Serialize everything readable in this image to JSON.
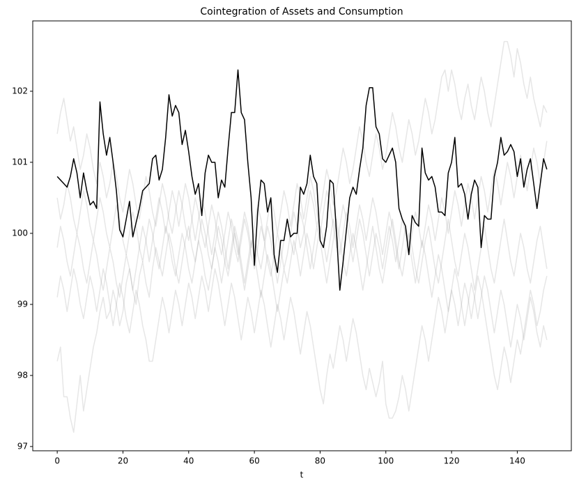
{
  "chart_data": {
    "type": "line",
    "title": "Cointegration of Assets and Consumption",
    "xlabel": "t",
    "x": [
      0,
      1,
      2,
      3,
      4,
      5,
      6,
      7,
      8,
      9,
      10,
      11,
      12,
      13,
      14,
      15,
      16,
      17,
      18,
      19,
      20,
      21,
      22,
      23,
      24,
      25,
      26,
      27,
      28,
      29,
      30,
      31,
      32,
      33,
      34,
      35,
      36,
      37,
      38,
      39,
      40,
      41,
      42,
      43,
      44,
      45,
      46,
      47,
      48,
      49,
      50,
      51,
      52,
      53,
      54,
      55,
      56,
      57,
      58,
      59,
      60,
      61,
      62,
      63,
      64,
      65,
      66,
      67,
      68,
      69,
      70,
      71,
      72,
      73,
      74,
      75,
      76,
      77,
      78,
      79,
      80,
      81,
      82,
      83,
      84,
      85,
      86,
      87,
      88,
      89,
      90,
      91,
      92,
      93,
      94,
      95,
      96,
      97,
      98,
      99,
      100,
      101,
      102,
      103,
      104,
      105,
      106,
      107,
      108,
      109,
      110,
      111,
      112,
      113,
      114,
      115,
      116,
      117,
      118,
      119,
      120,
      121,
      122,
      123,
      124,
      125,
      126,
      127,
      128,
      129,
      130,
      131,
      132,
      133,
      134,
      135,
      136,
      137,
      138,
      139,
      140,
      141,
      142,
      143,
      144,
      145,
      146,
      147,
      148,
      149
    ],
    "xlim": [
      -7.45,
      156.45
    ],
    "xticks": [
      0,
      20,
      40,
      60,
      80,
      100,
      120,
      140
    ],
    "ylim": [
      96.94,
      102.99
    ],
    "yticks": [
      97,
      98,
      99,
      100,
      101,
      102
    ],
    "series": [
      {
        "color": "#808080",
        "alpha": 0.2,
        "values": [
          98.2,
          98.4,
          97.7,
          97.7,
          97.4,
          97.2,
          97.6,
          98.0,
          97.5,
          97.8,
          98.1,
          98.4,
          98.6,
          98.9,
          99.1,
          98.8,
          98.9,
          99.2,
          99.0,
          98.7,
          98.9,
          99.3,
          99.5,
          99.2,
          99.0,
          99.4,
          99.6,
          99.3,
          99.1,
          99.5,
          99.8,
          99.6,
          99.4,
          99.7,
          100.0,
          99.8,
          99.5,
          99.3,
          99.6,
          99.9,
          100.1,
          99.8,
          99.6,
          99.9,
          100.2,
          100.0,
          99.7,
          99.5,
          99.8,
          100.1,
          99.9,
          99.6,
          99.4,
          99.7,
          100.0,
          99.8,
          99.5,
          99.2,
          99.5,
          99.8,
          100.0,
          99.7,
          99.5,
          99.8,
          100.1,
          99.9,
          99.6,
          99.3,
          99.6,
          99.9,
          100.2,
          99.9,
          99.7,
          100.0,
          100.3,
          100.1,
          99.8,
          99.5,
          99.8,
          100.1,
          99.9,
          99.6,
          99.3,
          99.6,
          99.9,
          100.2,
          99.9,
          99.6,
          99.4,
          99.7,
          100.0,
          99.8,
          99.5,
          99.2,
          99.5,
          99.8,
          100.1,
          99.8,
          99.5,
          99.3,
          99.6,
          99.9,
          100.2,
          99.9,
          99.6,
          99.4,
          99.7,
          100.0,
          99.8,
          99.5,
          99.3,
          99.6,
          99.9,
          100.1,
          99.8,
          99.5,
          99.3,
          99.6,
          99.9,
          100.2,
          99.9,
          99.6,
          99.4,
          99.7,
          100.0,
          99.8,
          99.5,
          99.2,
          99.5,
          99.8,
          100.1,
          99.8,
          99.5,
          99.3,
          99.6,
          99.9,
          100.2,
          99.9,
          99.6,
          99.4,
          99.7,
          100.0,
          99.8,
          99.5,
          99.3,
          99.6,
          99.9,
          100.1,
          99.8,
          99.5
        ]
      },
      {
        "color": "#808080",
        "alpha": 0.2,
        "values": [
          101.4,
          101.7,
          101.9,
          101.6,
          101.3,
          101.5,
          101.2,
          100.9,
          101.1,
          101.4,
          101.2,
          100.9,
          100.7,
          101.0,
          100.8,
          100.5,
          100.7,
          101.0,
          100.8,
          100.5,
          100.3,
          100.6,
          100.9,
          100.7,
          100.4,
          100.2,
          100.5,
          100.8,
          100.6,
          100.3,
          100.1,
          100.4,
          100.7,
          100.5,
          100.2,
          100.0,
          100.3,
          100.6,
          100.4,
          100.1,
          99.9,
          100.2,
          100.5,
          100.3,
          100.0,
          99.8,
          100.1,
          100.4,
          100.2,
          99.9,
          99.7,
          100.0,
          100.3,
          100.1,
          99.8,
          99.6,
          99.9,
          100.2,
          100.0,
          99.7,
          99.5,
          99.8,
          100.1,
          99.9,
          99.6,
          99.4,
          99.7,
          100.0,
          99.8,
          99.5,
          99.7,
          100.0,
          100.3,
          100.1,
          99.8,
          100.0,
          100.3,
          100.6,
          100.4,
          100.1,
          100.3,
          100.6,
          100.9,
          100.7,
          100.4,
          100.6,
          100.9,
          101.2,
          101.0,
          100.7,
          100.9,
          101.2,
          101.5,
          101.3,
          101.0,
          100.8,
          101.1,
          101.4,
          101.2,
          100.9,
          101.1,
          101.4,
          101.7,
          101.5,
          101.2,
          101.0,
          101.3,
          101.6,
          101.4,
          101.1,
          101.3,
          101.6,
          101.9,
          101.7,
          101.4,
          101.6,
          101.9,
          102.2,
          102.3,
          102.0,
          102.3,
          102.1,
          101.8,
          101.6,
          101.9,
          102.1,
          101.8,
          101.6,
          101.9,
          102.2,
          102.0,
          101.7,
          101.5,
          101.8,
          102.1,
          102.4,
          102.7,
          102.7,
          102.5,
          102.2,
          102.6,
          102.4,
          102.1,
          101.9,
          102.2,
          101.9,
          101.7,
          101.5,
          101.8,
          101.7
        ]
      },
      {
        "color": "#808080",
        "alpha": 0.2,
        "values": [
          99.1,
          99.4,
          99.2,
          98.9,
          99.2,
          99.5,
          99.3,
          99.0,
          98.8,
          99.1,
          99.4,
          99.2,
          98.9,
          99.2,
          99.5,
          99.3,
          99.0,
          98.7,
          99.0,
          99.3,
          99.1,
          98.8,
          98.6,
          98.9,
          99.2,
          99.0,
          98.7,
          98.5,
          98.2,
          98.2,
          98.5,
          98.8,
          99.1,
          98.9,
          98.6,
          98.9,
          99.2,
          99.0,
          98.7,
          99.0,
          99.3,
          99.1,
          98.8,
          99.1,
          99.4,
          99.2,
          98.9,
          99.2,
          99.5,
          99.3,
          99.0,
          98.7,
          99.0,
          99.3,
          99.1,
          98.8,
          98.5,
          98.8,
          99.1,
          98.9,
          98.6,
          98.9,
          99.2,
          99.0,
          98.7,
          98.4,
          98.7,
          99.0,
          98.8,
          98.5,
          98.8,
          99.1,
          98.9,
          98.6,
          98.3,
          98.6,
          98.9,
          98.7,
          98.4,
          98.1,
          97.8,
          97.6,
          98.0,
          98.3,
          98.1,
          98.4,
          98.7,
          98.5,
          98.2,
          98.5,
          98.8,
          98.6,
          98.3,
          98.0,
          97.8,
          98.1,
          97.9,
          97.7,
          97.9,
          98.2,
          97.6,
          97.4,
          97.4,
          97.5,
          97.7,
          98.0,
          97.8,
          97.5,
          97.8,
          98.1,
          98.4,
          98.7,
          98.5,
          98.2,
          98.5,
          98.8,
          99.1,
          98.9,
          98.6,
          98.9,
          99.2,
          99.0,
          98.7,
          99.0,
          99.3,
          99.1,
          98.8,
          99.1,
          99.4,
          99.2,
          98.9,
          98.6,
          98.3,
          98.0,
          97.8,
          98.1,
          98.4,
          98.2,
          97.9,
          98.2,
          98.5,
          98.3,
          98.6,
          98.9,
          99.2,
          99.0,
          98.7,
          98.9,
          99.2,
          99.4
        ]
      },
      {
        "color": "#808080",
        "alpha": 0.2,
        "values": [
          100.5,
          100.2,
          100.4,
          100.7,
          100.5,
          100.2,
          100.0,
          100.3,
          100.6,
          100.4,
          100.1,
          99.9,
          100.2,
          100.5,
          100.3,
          100.0,
          99.8,
          100.1,
          100.4,
          100.2,
          99.9,
          99.7,
          100.0,
          100.3,
          100.1,
          99.8,
          99.6,
          99.9,
          100.2,
          100.0,
          99.7,
          99.5,
          99.8,
          100.1,
          99.9,
          99.6,
          99.4,
          99.7,
          100.0,
          99.8,
          99.5,
          99.3,
          99.6,
          99.9,
          99.7,
          99.4,
          99.2,
          99.5,
          99.8,
          99.6,
          99.3,
          99.6,
          99.9,
          100.2,
          100.0,
          99.7,
          100.0,
          100.3,
          100.1,
          99.8,
          100.1,
          100.4,
          100.2,
          99.9,
          100.2,
          100.5,
          100.3,
          100.0,
          100.3,
          100.6,
          100.4,
          100.1,
          100.4,
          100.7,
          100.5,
          100.2,
          100.5,
          100.8,
          100.6,
          100.3,
          100.0,
          100.3,
          100.6,
          100.4,
          100.1,
          99.8,
          100.1,
          100.4,
          100.2,
          99.9,
          99.6,
          99.9,
          100.2,
          100.0,
          99.7,
          99.4,
          99.7,
          100.0,
          99.8,
          99.5,
          99.8,
          100.1,
          99.9,
          99.6,
          99.9,
          100.2,
          100.0,
          99.7,
          100.0,
          100.3,
          100.1,
          99.8,
          100.1,
          100.4,
          100.2,
          99.9,
          100.2,
          100.5,
          100.3,
          100.0,
          100.3,
          100.6,
          100.4,
          100.1,
          100.4,
          100.7,
          100.5,
          100.2,
          100.5,
          100.8,
          100.6,
          100.3,
          100.6,
          100.9,
          100.7,
          100.4,
          100.7,
          101.0,
          100.8,
          100.5,
          100.8,
          101.1,
          100.9,
          100.6,
          100.9,
          101.2,
          101.0,
          100.7,
          101.0,
          101.3
        ]
      },
      {
        "color": "#808080",
        "alpha": 0.2,
        "values": [
          99.8,
          100.1,
          99.9,
          99.6,
          99.4,
          99.7,
          100.0,
          99.8,
          99.5,
          99.3,
          99.6,
          99.9,
          99.7,
          99.4,
          99.2,
          99.5,
          99.8,
          99.6,
          99.3,
          99.1,
          99.4,
          99.7,
          99.5,
          99.2,
          99.5,
          99.8,
          100.1,
          99.9,
          99.6,
          99.9,
          100.2,
          100.5,
          100.3,
          100.0,
          100.3,
          100.6,
          100.4,
          100.1,
          100.4,
          100.7,
          100.5,
          100.2,
          99.9,
          100.2,
          100.5,
          100.3,
          100.0,
          99.7,
          100.0,
          100.3,
          100.1,
          99.8,
          99.5,
          99.8,
          100.1,
          99.9,
          99.6,
          99.3,
          99.6,
          99.9,
          99.7,
          99.4,
          99.1,
          99.4,
          99.7,
          99.5,
          99.2,
          98.9,
          99.2,
          99.5,
          99.3,
          99.6,
          99.9,
          99.7,
          99.4,
          99.7,
          100.0,
          99.8,
          99.5,
          99.8,
          100.1,
          99.9,
          99.6,
          99.9,
          100.2,
          100.0,
          99.7,
          100.0,
          100.3,
          100.1,
          99.8,
          100.1,
          100.4,
          100.2,
          99.9,
          100.2,
          100.5,
          100.3,
          100.0,
          99.7,
          100.0,
          100.3,
          100.1,
          99.8,
          99.5,
          99.8,
          100.1,
          99.9,
          99.6,
          99.3,
          99.6,
          99.9,
          99.7,
          99.4,
          99.1,
          99.4,
          99.7,
          99.5,
          99.2,
          98.9,
          99.2,
          99.5,
          99.3,
          99.0,
          98.7,
          99.0,
          99.3,
          99.1,
          98.8,
          99.1,
          99.4,
          99.2,
          98.9,
          98.6,
          98.9,
          99.2,
          99.0,
          98.7,
          98.4,
          98.7,
          99.0,
          98.8,
          98.5,
          98.8,
          99.1,
          98.9,
          98.6,
          98.4,
          98.7,
          98.5
        ]
      },
      {
        "color": "#000000",
        "alpha": 1,
        "values": [
          100.8,
          100.75,
          100.7,
          100.65,
          100.8,
          101.05,
          100.85,
          100.5,
          100.85,
          100.6,
          100.4,
          100.45,
          100.35,
          101.85,
          101.4,
          101.1,
          101.35,
          101.0,
          100.6,
          100.05,
          99.95,
          100.2,
          100.45,
          99.95,
          100.15,
          100.35,
          100.6,
          100.65,
          100.7,
          101.05,
          101.1,
          100.75,
          100.9,
          101.35,
          101.95,
          101.65,
          101.8,
          101.7,
          101.25,
          101.45,
          101.15,
          100.8,
          100.55,
          100.7,
          100.25,
          100.85,
          101.1,
          101.0,
          101.0,
          100.5,
          100.75,
          100.65,
          101.2,
          101.7,
          101.7,
          102.3,
          101.7,
          101.6,
          101.0,
          100.5,
          99.55,
          100.3,
          100.75,
          100.7,
          100.3,
          100.5,
          99.7,
          99.45,
          99.9,
          99.9,
          100.2,
          99.95,
          100.0,
          100.0,
          100.65,
          100.55,
          100.7,
          101.1,
          100.8,
          100.7,
          99.9,
          99.8,
          100.1,
          100.75,
          100.7,
          100.0,
          99.2,
          99.6,
          100.05,
          100.5,
          100.65,
          100.55,
          100.9,
          101.2,
          101.8,
          102.05,
          102.05,
          101.5,
          101.4,
          101.05,
          101.0,
          101.1,
          101.2,
          101.0,
          100.35,
          100.2,
          100.1,
          99.7,
          100.25,
          100.15,
          100.1,
          101.2,
          100.85,
          100.75,
          100.8,
          100.65,
          100.3,
          100.3,
          100.25,
          100.85,
          101.0,
          101.35,
          100.65,
          100.7,
          100.55,
          100.2,
          100.55,
          100.75,
          100.65,
          99.8,
          100.25,
          100.2,
          100.2,
          100.8,
          101.0,
          101.35,
          101.1,
          101.15,
          101.25,
          101.15,
          100.8,
          101.05,
          100.65,
          100.9,
          101.05,
          100.7,
          100.35,
          100.7,
          101.05,
          100.9
        ]
      }
    ]
  }
}
